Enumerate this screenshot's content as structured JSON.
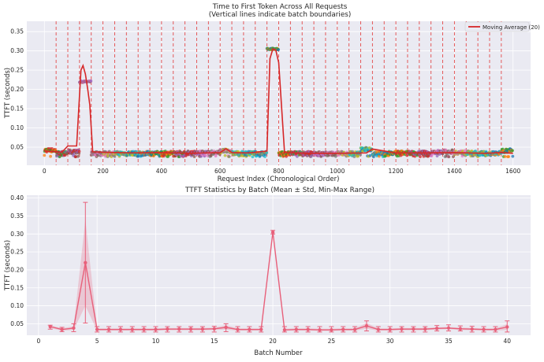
{
  "chart_data": [
    {
      "type": "scatter",
      "title_line1": "Time to First Token Across All Requests",
      "title_line2": "(Vertical lines indicate batch boundaries)",
      "xlabel": "Request Index (Chronological Order)",
      "ylabel": "TTFT (seconds)",
      "xlim": [
        -60,
        1660
      ],
      "ylim": [
        0.003,
        0.377
      ],
      "xticks": [
        0,
        200,
        400,
        600,
        800,
        1000,
        1200,
        1400,
        1600
      ],
      "yticks": [
        0.05,
        0.1,
        0.15,
        0.2,
        0.25,
        0.3,
        0.35
      ],
      "ytick_labels": [
        "0.05",
        "0.10",
        "0.15",
        "0.20",
        "0.25",
        "0.30",
        "0.35"
      ],
      "grid": true,
      "legend": {
        "position": "top-right",
        "label": "Moving Average (20)"
      },
      "batch_size": 40,
      "batch_colors": [
        "#ff7f0e",
        "#2ca02c",
        "#d62728",
        "#9467bd",
        "#8c564b",
        "#e377c2",
        "#7f7f7f",
        "#bcbd22",
        "#17becf",
        "#1f77b4"
      ],
      "batch_means": [
        0.042,
        0.034,
        0.038,
        0.22,
        0.034,
        0.034,
        0.034,
        0.034,
        0.034,
        0.034,
        0.035,
        0.035,
        0.035,
        0.035,
        0.036,
        0.04,
        0.034,
        0.034,
        0.034,
        0.305,
        0.033,
        0.034,
        0.034,
        0.033,
        0.033,
        0.034,
        0.034,
        0.044,
        0.034,
        0.034,
        0.035,
        0.035,
        0.035,
        0.037,
        0.038,
        0.036,
        0.035,
        0.034,
        0.034,
        0.041
      ],
      "batch_boundaries": [
        40,
        80,
        120,
        160,
        200,
        240,
        280,
        320,
        360,
        400,
        440,
        480,
        520,
        560,
        600,
        640,
        680,
        720,
        760,
        800,
        840,
        880,
        920,
        960,
        1000,
        1040,
        1080,
        1120,
        1160,
        1200,
        1240,
        1280,
        1320,
        1360,
        1400,
        1440,
        1480,
        1520,
        1560
      ],
      "moving_average": {
        "x": [
          0,
          60,
          80,
          110,
          125,
          132,
          140,
          148,
          155,
          165,
          200,
          300,
          400,
          500,
          600,
          620,
          640,
          700,
          760,
          770,
          780,
          790,
          800,
          820,
          900,
          1000,
          1100,
          1120,
          1200,
          1300,
          1400,
          1500,
          1560,
          1600
        ],
        "y": [
          0.04,
          0.037,
          0.053,
          0.053,
          0.25,
          0.262,
          0.24,
          0.2,
          0.16,
          0.038,
          0.037,
          0.035,
          0.036,
          0.034,
          0.036,
          0.046,
          0.036,
          0.035,
          0.04,
          0.28,
          0.305,
          0.302,
          0.27,
          0.036,
          0.034,
          0.034,
          0.035,
          0.045,
          0.035,
          0.035,
          0.036,
          0.034,
          0.036,
          0.034
        ]
      }
    },
    {
      "type": "line",
      "title": "TTFT Statistics by Batch (Mean ± Std, Min-Max Range)",
      "xlabel": "Batch Number",
      "ylabel": "TTFT (seconds)",
      "xlim": [
        -1,
        42
      ],
      "ylim": [
        0.018,
        0.408
      ],
      "xticks": [
        0,
        5,
        10,
        15,
        20,
        25,
        30,
        35,
        40
      ],
      "yticks": [
        0.05,
        0.1,
        0.15,
        0.2,
        0.25,
        0.3,
        0.35,
        0.4
      ],
      "ytick_labels": [
        "0.05",
        "0.10",
        "0.15",
        "0.20",
        "0.25",
        "0.30",
        "0.35",
        "0.40"
      ],
      "grid": true,
      "color": "#e8607a",
      "x": [
        1,
        2,
        3,
        4,
        5,
        6,
        7,
        8,
        9,
        10,
        11,
        12,
        13,
        14,
        15,
        16,
        17,
        18,
        19,
        20,
        21,
        22,
        23,
        24,
        25,
        26,
        27,
        28,
        29,
        30,
        31,
        32,
        33,
        34,
        35,
        36,
        37,
        38,
        39,
        40
      ],
      "mean": [
        0.042,
        0.034,
        0.038,
        0.22,
        0.034,
        0.034,
        0.034,
        0.034,
        0.034,
        0.034,
        0.035,
        0.035,
        0.035,
        0.035,
        0.036,
        0.04,
        0.034,
        0.034,
        0.034,
        0.305,
        0.033,
        0.034,
        0.034,
        0.033,
        0.033,
        0.034,
        0.034,
        0.044,
        0.034,
        0.034,
        0.035,
        0.035,
        0.035,
        0.037,
        0.038,
        0.036,
        0.035,
        0.034,
        0.034,
        0.041
      ],
      "std": [
        0.004,
        0.003,
        0.005,
        0.12,
        0.003,
        0.003,
        0.003,
        0.003,
        0.003,
        0.003,
        0.003,
        0.003,
        0.003,
        0.003,
        0.003,
        0.006,
        0.003,
        0.003,
        0.003,
        0.003,
        0.003,
        0.003,
        0.003,
        0.003,
        0.003,
        0.003,
        0.003,
        0.008,
        0.003,
        0.003,
        0.003,
        0.003,
        0.003,
        0.003,
        0.003,
        0.003,
        0.003,
        0.003,
        0.003,
        0.008
      ],
      "min": [
        0.035,
        0.028,
        0.028,
        0.052,
        0.027,
        0.027,
        0.027,
        0.027,
        0.027,
        0.027,
        0.027,
        0.027,
        0.027,
        0.027,
        0.027,
        0.028,
        0.027,
        0.027,
        0.027,
        0.3,
        0.027,
        0.027,
        0.027,
        0.027,
        0.027,
        0.027,
        0.027,
        0.03,
        0.027,
        0.027,
        0.027,
        0.027,
        0.027,
        0.03,
        0.03,
        0.03,
        0.027,
        0.027,
        0.027,
        0.027
      ],
      "max": [
        0.046,
        0.04,
        0.05,
        0.388,
        0.042,
        0.042,
        0.042,
        0.042,
        0.042,
        0.042,
        0.042,
        0.042,
        0.042,
        0.042,
        0.043,
        0.05,
        0.042,
        0.042,
        0.042,
        0.31,
        0.042,
        0.042,
        0.042,
        0.042,
        0.042,
        0.042,
        0.042,
        0.058,
        0.042,
        0.042,
        0.042,
        0.042,
        0.042,
        0.045,
        0.047,
        0.044,
        0.043,
        0.042,
        0.042,
        0.058
      ]
    }
  ]
}
